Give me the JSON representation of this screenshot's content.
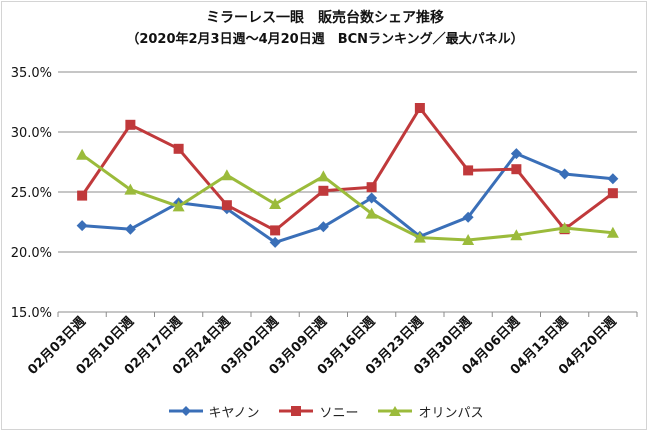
{
  "chart_data": {
    "type": "line",
    "title": "ミラーレス一眼　販売台数シェア推移",
    "subtitle": "（2020年2月3日週〜4月20日週　BCNランキング／最大パネル）",
    "xlabel": "",
    "ylabel": "",
    "categories": [
      "02月03日週",
      "02月10日週",
      "02月17日週",
      "02月24日週",
      "03月02日週",
      "03月09日週",
      "03月16日週",
      "03月23日週",
      "03月30日週",
      "04月06日週",
      "04月13日週",
      "04月20日週"
    ],
    "ylim": [
      15,
      35
    ],
    "yticks": [
      "15.0%",
      "20.0%",
      "25.0%",
      "30.0%",
      "35.0%"
    ],
    "ytick_values": [
      15,
      20,
      25,
      30,
      35
    ],
    "grid": true,
    "legend_position": "bottom",
    "series": [
      {
        "name": "キヤノン",
        "color": "#3A6FB8",
        "marker": "diamond",
        "values": [
          22.2,
          21.9,
          24.1,
          23.6,
          20.8,
          22.1,
          24.5,
          21.3,
          22.9,
          28.2,
          26.5,
          26.1
        ]
      },
      {
        "name": "ソニー",
        "color": "#C0393B",
        "marker": "square",
        "values": [
          24.7,
          30.6,
          28.6,
          23.9,
          21.8,
          25.1,
          25.4,
          32.0,
          26.8,
          26.9,
          21.9,
          24.9
        ]
      },
      {
        "name": "オリンパス",
        "color": "#9BBB3B",
        "marker": "triangle",
        "values": [
          28.1,
          25.2,
          23.8,
          26.4,
          24.0,
          26.3,
          23.2,
          21.2,
          21.0,
          21.4,
          22.0,
          21.6
        ]
      }
    ]
  }
}
